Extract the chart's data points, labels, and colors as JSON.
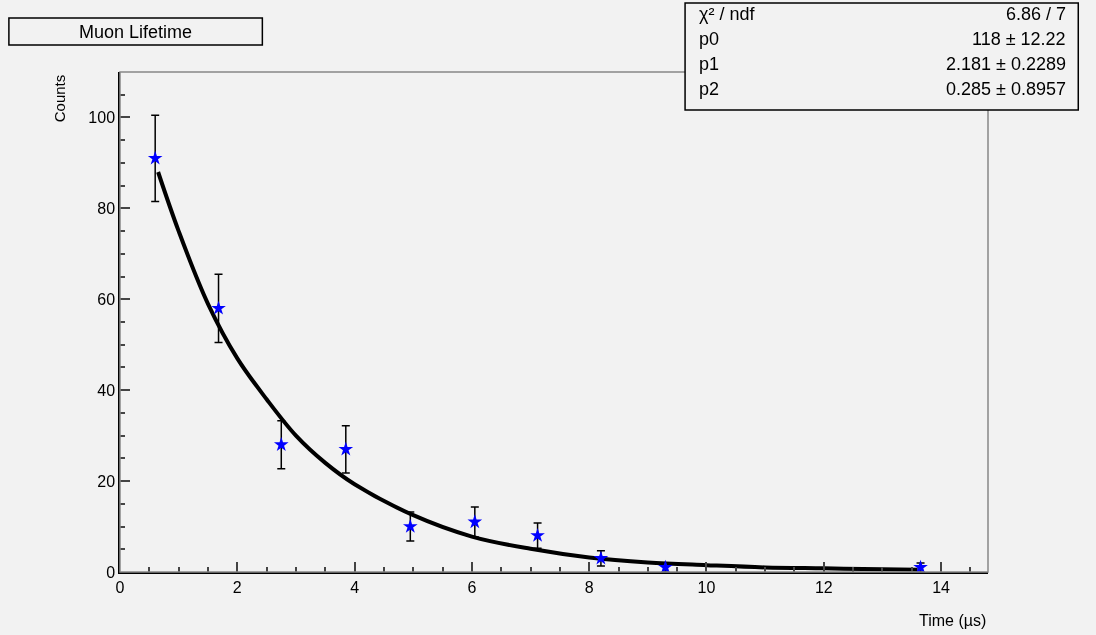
{
  "chart_data": {
    "type": "scatter",
    "title": "Muon Lifetime",
    "xlabel": "Time (µs)",
    "ylabel": "Counts",
    "xlim": [
      0,
      14.8
    ],
    "xticks": [
      0,
      2,
      4,
      6,
      8,
      10,
      12,
      14
    ],
    "ylim": [
      0,
      110
    ],
    "yticks": [
      0,
      20,
      40,
      60,
      80,
      100
    ],
    "grid": false,
    "legend": false,
    "annotations": [
      "χ² / ndf",
      "6.86 / 7",
      "p0",
      "118 ± 12.22",
      "p1",
      "2.181 ± 0.2289",
      "p2",
      "0.285 ± 0.8957"
    ],
    "series": [
      {
        "color": "#0000ff",
        "marker": "star",
        "x": [
          0.6,
          1.68,
          2.75,
          3.85,
          4.95,
          6.05,
          7.12,
          8.2,
          9.3,
          13.65
        ],
        "values": [
          91,
          58,
          28,
          27,
          10,
          11,
          8,
          3,
          1,
          1
        ],
        "errors": [
          9.5,
          7.5,
          5.3,
          5.2,
          3.2,
          3.3,
          2.8,
          1.7,
          1,
          1
        ]
      },
      {
        "type": "line",
        "color": "#000000",
        "line_style": "solid",
        "x": [
          0.65,
          1,
          1.5,
          2,
          2.5,
          3,
          3.5,
          4,
          5,
          6,
          7,
          8,
          9,
          10,
          11,
          12,
          13,
          13.6
        ],
        "values": [
          88,
          75,
          59,
          47,
          38,
          30,
          24,
          19.3,
          12.5,
          7.8,
          5.1,
          3.2,
          2.1,
          1.5,
          1,
          0.8,
          0.6,
          0.5
        ]
      }
    ]
  }
}
